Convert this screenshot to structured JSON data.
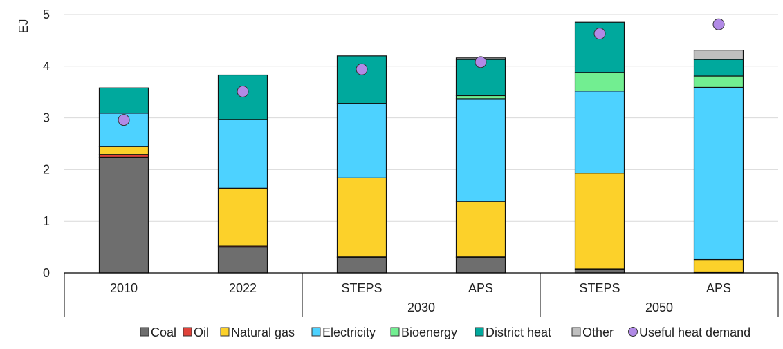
{
  "chart_data": {
    "type": "bar",
    "stacked": true,
    "ylabel": "EJ",
    "ylim": [
      0,
      5
    ],
    "yticks": [
      "0",
      "1",
      "2",
      "3",
      "4",
      "5"
    ],
    "grid": true,
    "legend_position": "bottom",
    "categories": [
      {
        "label": "2010",
        "group": ""
      },
      {
        "label": "2022",
        "group": ""
      },
      {
        "label": "STEPS",
        "group": "2030"
      },
      {
        "label": "APS",
        "group": "2030"
      },
      {
        "label": "STEPS",
        "group": "2050"
      },
      {
        "label": "APS",
        "group": "2050"
      }
    ],
    "groups": [
      "2030",
      "2050"
    ],
    "series": [
      {
        "name": "Coal",
        "color": "#6e6e6e",
        "values": [
          2.24,
          0.5,
          0.3,
          0.3,
          0.07,
          0.01
        ]
      },
      {
        "name": "Oil",
        "color": "#e0423a",
        "values": [
          0.05,
          0.02,
          0.01,
          0.01,
          0.01,
          0.01
        ]
      },
      {
        "name": "Natural gas",
        "color": "#fcd12a",
        "values": [
          0.16,
          1.12,
          1.53,
          1.07,
          1.85,
          0.24
        ]
      },
      {
        "name": "Electricity",
        "color": "#4dd2ff",
        "values": [
          0.64,
          1.33,
          1.44,
          1.99,
          1.59,
          3.33
        ]
      },
      {
        "name": "Bioenergy",
        "color": "#72ee91",
        "values": [
          0.0,
          0.0,
          0.0,
          0.06,
          0.36,
          0.22
        ]
      },
      {
        "name": "District heat",
        "color": "#00a99d",
        "values": [
          0.49,
          0.86,
          0.92,
          0.7,
          0.97,
          0.32
        ]
      },
      {
        "name": "Other",
        "color": "#bfbfbf",
        "values": [
          0.0,
          0.0,
          0.0,
          0.03,
          0.0,
          0.18
        ]
      }
    ],
    "markers": {
      "name": "Useful heat demand",
      "color": "#b18ae6",
      "values": [
        2.96,
        3.51,
        3.94,
        4.08,
        4.63,
        4.81
      ]
    }
  }
}
